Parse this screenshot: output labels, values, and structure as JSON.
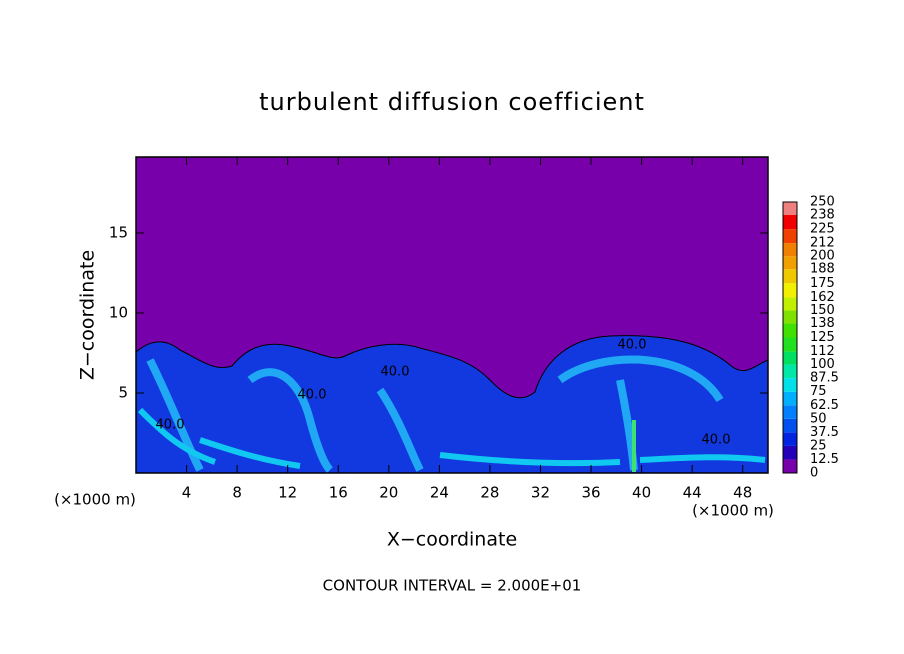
{
  "chart_data": {
    "type": "heatmap",
    "title": "turbulent diffusion coefficient",
    "xlabel": "X−coordinate",
    "ylabel": "Z−coordinate",
    "xunit": "(×1000 m)",
    "yunit": "(×1000 m)",
    "footer": "CONTOUR INTERVAL = 2.000E+01",
    "xlim": [
      0,
      50
    ],
    "xticks": [
      4,
      8,
      12,
      16,
      20,
      24,
      28,
      32,
      36,
      40,
      44,
      48
    ],
    "ylim": [
      0,
      19.75
    ],
    "yticks": [
      5,
      10,
      15
    ],
    "contour_labels": [
      "40.0",
      "40.0",
      "40.0",
      "40.0",
      "40.0"
    ],
    "colorbar": {
      "levels": [
        0,
        12.5,
        25,
        37.5,
        50,
        62.5,
        75,
        87.5,
        100,
        112,
        125,
        138,
        150,
        162,
        175,
        188,
        200,
        212,
        225,
        238,
        250
      ],
      "colors": [
        "#7800aa",
        "#2400b8",
        "#0024e0",
        "#0050f0",
        "#0080ff",
        "#00b0ff",
        "#00e0e8",
        "#00e8a8",
        "#00e060",
        "#20e020",
        "#40e000",
        "#80e000",
        "#c0f000",
        "#f0f000",
        "#f0c800",
        "#f0a000",
        "#f08000",
        "#f04000",
        "#f00000",
        "#f08080"
      ]
    }
  }
}
